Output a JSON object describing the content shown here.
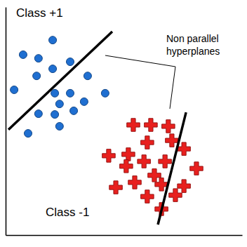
{
  "chart_data": {
    "type": "scatter",
    "annotations": [
      "Non parallel hyperplanes"
    ],
    "xlim": [
      0,
      100
    ],
    "ylim": [
      0,
      100
    ],
    "xticks": [],
    "yticks": [],
    "tick_labels": false,
    "grid": false,
    "series": [
      {
        "name": "Class +1",
        "type": "scatter",
        "color": "#1f6fd1",
        "marker": "circle",
        "x": [
          19.9,
          7.4,
          13.9,
          19.9,
          27.3,
          13.1,
          34.7,
          3.6,
          20.8,
          27.3,
          42.1,
          13.9,
          22.8,
          33.2,
          28.8,
          20.8,
          9.5,
          22.8
        ],
        "values": [
          85.5,
          79.1,
          77.5,
          72.9,
          76.0,
          69.8,
          69.8,
          63.7,
          62.2,
          62.2,
          62.2,
          53.2,
          57.5,
          58.5,
          54.5,
          52.9,
          44.6,
          47.7
        ]
      },
      {
        "name": "Class -1",
        "type": "scatter",
        "color": "#e8201e",
        "marker": "plus",
        "x": [
          54.0,
          61.4,
          68.8,
          59.9,
          70.3,
          51.9,
          75.4,
          43.6,
          58.5,
          67.4,
          80.7,
          51.0,
          62.9,
          54.6,
          65.9,
          75.4,
          46.6,
          59.9,
          71.8,
          65.9
        ],
        "values": [
          48.3,
          48.3,
          47.7,
          40.6,
          41.5,
          35.4,
          37.8,
          34.8,
          32.3,
          32.3,
          29.2,
          30.2,
          26.2,
          23.1,
          22.2,
          21.5,
          20.9,
          16.9,
          17.5,
          11.4
        ]
      },
      {
        "type": "line",
        "color": "#000000",
        "line_style": "solid",
        "x": [
          1.2,
          45.1
        ],
        "values": [
          46.2,
          89.2
        ]
      },
      {
        "type": "line",
        "color": "#000000",
        "line_style": "solid",
        "x": [
          76.3,
          64.4
        ],
        "values": [
          53.8,
          4.6
        ]
      }
    ]
  }
}
